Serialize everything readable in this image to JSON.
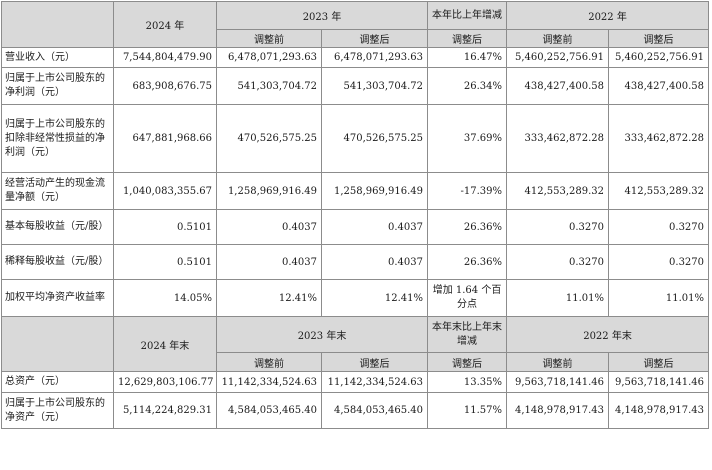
{
  "table1": {
    "headers": {
      "y2024": "2024 年",
      "y2023": "2023 年",
      "yoy": "本年比上年增减",
      "y2022": "2022 年",
      "before": "调整前",
      "after": "调整后",
      "after_yoy": "调整后"
    },
    "rows": [
      {
        "label": "营业收入（元）",
        "v2024": "7,544,804,479.90",
        "v2023b": "6,478,071,293.63",
        "v2023a": "6,478,071,293.63",
        "yoy": "16.47%",
        "v2022b": "5,460,252,756.91",
        "v2022a": "5,460,252,756.91"
      },
      {
        "label": "归属于上市公司股东的净利润（元）",
        "v2024": "683,908,676.75",
        "v2023b": "541,303,704.72",
        "v2023a": "541,303,704.72",
        "yoy": "26.34%",
        "v2022b": "438,427,400.58",
        "v2022a": "438,427,400.58"
      },
      {
        "label": "归属于上市公司股东的扣除非经常性损益的净利润（元）",
        "v2024": "647,881,968.66",
        "v2023b": "470,526,575.25",
        "v2023a": "470,526,575.25",
        "yoy": "37.69%",
        "v2022b": "333,462,872.28",
        "v2022a": "333,462,872.28"
      },
      {
        "label": "经营活动产生的现金流量净额（元）",
        "v2024": "1,040,083,355.67",
        "v2023b": "1,258,969,916.49",
        "v2023a": "1,258,969,916.49",
        "yoy": "-17.39%",
        "v2022b": "412,553,289.32",
        "v2022a": "412,553,289.32"
      },
      {
        "label": "基本每股收益（元/股）",
        "v2024": "0.5101",
        "v2023b": "0.4037",
        "v2023a": "0.4037",
        "yoy": "26.36%",
        "v2022b": "0.3270",
        "v2022a": "0.3270"
      },
      {
        "label": "稀释每股收益（元/股）",
        "v2024": "0.5101",
        "v2023b": "0.4037",
        "v2023a": "0.4037",
        "yoy": "26.36%",
        "v2022b": "0.3270",
        "v2022a": "0.3270"
      },
      {
        "label": "加权平均净资产收益率",
        "v2024": "14.05%",
        "v2023b": "12.41%",
        "v2023a": "12.41%",
        "yoy": "增加 1.64 个百分点",
        "v2022b": "11.01%",
        "v2022a": "11.01%"
      }
    ]
  },
  "table2": {
    "headers": {
      "y2024": "2024 年末",
      "y2023": "2023 年末",
      "yoy": "本年末比上年末增减",
      "y2022": "2022 年末",
      "before": "调整前",
      "after": "调整后",
      "after_yoy": "调整后"
    },
    "rows": [
      {
        "label": "总资产（元）",
        "v2024": "12,629,803,106.77",
        "v2023b": "11,142,334,524.63",
        "v2023a": "11,142,334,524.63",
        "yoy": "13.35%",
        "v2022b": "9,563,718,141.46",
        "v2022a": "9,563,718,141.46"
      },
      {
        "label": "归属于上市公司股东的净资产（元）",
        "v2024": "5,114,224,829.31",
        "v2023b": "4,584,053,465.40",
        "v2023a": "4,584,053,465.40",
        "yoy": "11.57%",
        "v2022b": "4,148,978,917.43",
        "v2022a": "4,148,978,917.43"
      }
    ]
  }
}
